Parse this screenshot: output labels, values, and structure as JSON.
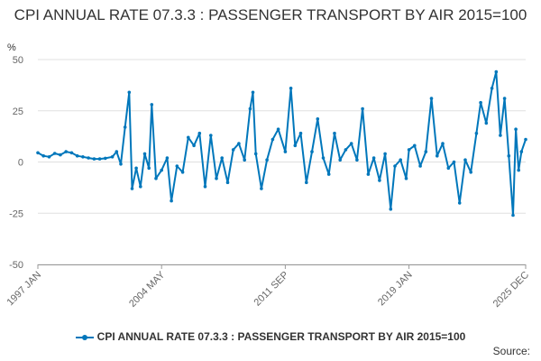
{
  "chart_data": {
    "type": "line",
    "title": "CPI ANNUAL RATE 07.3.3 : PASSENGER TRANSPORT BY AIR 2015=100",
    "ylabel": "%",
    "xlabel": "",
    "ylim": [
      -50,
      50
    ],
    "yticks": [
      50,
      25,
      0,
      -25,
      -50
    ],
    "xticks": [
      "1997 JAN",
      "2004 MAY",
      "2011 SEP",
      "2019 JAN",
      "2025 DEC"
    ],
    "x_range": [
      "1997 JAN",
      "2025 DEC"
    ],
    "grid": "horizontal",
    "legend_position": "bottom",
    "series_color": "#0077bb",
    "series": [
      {
        "name": "CPI ANNUAL RATE 07.3.3 : PASSENGER TRANSPORT BY AIR 2015=100",
        "points": [
          [
            "1997 JAN",
            4.5
          ],
          [
            "1997 MAY",
            3.0
          ],
          [
            "1997 SEP",
            2.5
          ],
          [
            "1998 JAN",
            4.2
          ],
          [
            "1998 MAY",
            3.5
          ],
          [
            "1998 SEP",
            5.0
          ],
          [
            "1999 JAN",
            4.5
          ],
          [
            "1999 MAY",
            3.0
          ],
          [
            "1999 SEP",
            2.5
          ],
          [
            "2000 JAN",
            2.0
          ],
          [
            "2000 MAY",
            1.5
          ],
          [
            "2000 SEP",
            1.5
          ],
          [
            "2001 JAN",
            1.8
          ],
          [
            "2001 JUN",
            2.5
          ],
          [
            "2001 SEP",
            5.0
          ],
          [
            "2001 DEC",
            -1.0
          ],
          [
            "2002 MAR",
            17.0
          ],
          [
            "2002 JUN",
            34.0
          ],
          [
            "2002 AUG",
            -13.0
          ],
          [
            "2002 NOV",
            -3.0
          ],
          [
            "2003 FEB",
            -12.0
          ],
          [
            "2003 MAY",
            4.0
          ],
          [
            "2003 AUG",
            -3.0
          ],
          [
            "2003 OCT",
            28.0
          ],
          [
            "2004 JAN",
            -8.0
          ],
          [
            "2004 MAY",
            -4.0
          ],
          [
            "2004 SEP",
            2.0
          ],
          [
            "2004 DEC",
            -19.0
          ],
          [
            "2005 APR",
            -2.0
          ],
          [
            "2005 AUG",
            -5.0
          ],
          [
            "2005 DEC",
            12.0
          ],
          [
            "2006 APR",
            8.0
          ],
          [
            "2006 AUG",
            14.0
          ],
          [
            "2006 DEC",
            -12.0
          ],
          [
            "2007 APR",
            13.0
          ],
          [
            "2007 AUG",
            -8.0
          ],
          [
            "2007 DEC",
            2.0
          ],
          [
            "2008 APR",
            -10.0
          ],
          [
            "2008 AUG",
            6.0
          ],
          [
            "2008 DEC",
            9.0
          ],
          [
            "2009 APR",
            1.0
          ],
          [
            "2009 AUG",
            26.0
          ],
          [
            "2009 OCT",
            34.0
          ],
          [
            "2009 DEC",
            4.0
          ],
          [
            "2010 APR",
            -13.0
          ],
          [
            "2010 AUG",
            1.0
          ],
          [
            "2010 DEC",
            11.0
          ],
          [
            "2011 APR",
            16.0
          ],
          [
            "2011 SEP",
            5.0
          ],
          [
            "2012 JAN",
            36.0
          ],
          [
            "2012 APR",
            8.0
          ],
          [
            "2012 AUG",
            14.0
          ],
          [
            "2012 DEC",
            -10.0
          ],
          [
            "2013 APR",
            5.0
          ],
          [
            "2013 AUG",
            21.0
          ],
          [
            "2013 DEC",
            2.0
          ],
          [
            "2014 APR",
            -6.0
          ],
          [
            "2014 AUG",
            14.0
          ],
          [
            "2014 DEC",
            1.0
          ],
          [
            "2015 APR",
            6.0
          ],
          [
            "2015 AUG",
            9.0
          ],
          [
            "2015 DEC",
            1.0
          ],
          [
            "2016 APR",
            26.0
          ],
          [
            "2016 AUG",
            -6.0
          ],
          [
            "2016 DEC",
            2.0
          ],
          [
            "2017 APR",
            -9.0
          ],
          [
            "2017 AUG",
            4.0
          ],
          [
            "2017 DEC",
            -23.0
          ],
          [
            "2018 MAR",
            -2.0
          ],
          [
            "2018 JUL",
            1.0
          ],
          [
            "2018 NOV",
            -8.0
          ],
          [
            "2019 JAN",
            6.0
          ],
          [
            "2019 MAY",
            8.0
          ],
          [
            "2019 SEP",
            -2.0
          ],
          [
            "2020 JAN",
            5.0
          ],
          [
            "2020 MAY",
            31.0
          ],
          [
            "2020 SEP",
            3.0
          ],
          [
            "2021 JAN",
            9.0
          ],
          [
            "2021 MAY",
            -3.0
          ],
          [
            "2021 SEP",
            0.0
          ],
          [
            "2022 JAN",
            -20.0
          ],
          [
            "2022 MAY",
            1.0
          ],
          [
            "2022 SEP",
            -5.0
          ],
          [
            "2023 JAN",
            14.0
          ],
          [
            "2023 APR",
            29.0
          ],
          [
            "2023 AUG",
            19.0
          ],
          [
            "2023 DEC",
            36.0
          ],
          [
            "2024 MAR",
            44.0
          ],
          [
            "2024 JUN",
            13.0
          ],
          [
            "2024 SEP",
            31.0
          ],
          [
            "2024 DEC",
            3.0
          ],
          [
            "2025 MAR",
            -26.0
          ],
          [
            "2025 MAY",
            16.0
          ],
          [
            "2025 JUL",
            -4.0
          ],
          [
            "2025 SEP",
            5.0
          ],
          [
            "2025 DEC",
            11.0
          ]
        ]
      }
    ]
  },
  "legend": {
    "label": "CPI ANNUAL RATE 07.3.3 : PASSENGER TRANSPORT BY AIR 2015=100"
  },
  "source_label": "Source:"
}
